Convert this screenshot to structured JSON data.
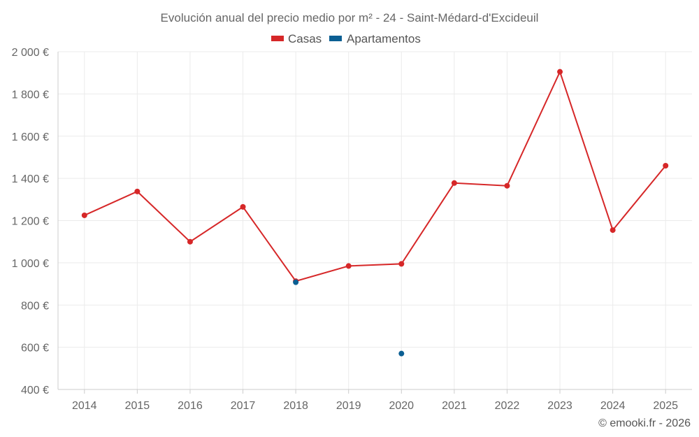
{
  "chart_data": {
    "type": "line",
    "title": "Evolución anual del precio medio por m² - 24 - Saint-Médard-d'Excideuil",
    "categories": [
      "2014",
      "2015",
      "2016",
      "2017",
      "2018",
      "2019",
      "2020",
      "2021",
      "2022",
      "2023",
      "2024",
      "2025"
    ],
    "ylim": [
      400,
      2000
    ],
    "yticks": [
      400,
      600,
      800,
      1000,
      1200,
      1400,
      1600,
      1800,
      2000
    ],
    "ytick_labels": [
      "400 €",
      "600 €",
      "800 €",
      "1 000 €",
      "1 200 €",
      "1 400 €",
      "1 600 €",
      "1 800 €",
      "2 000 €"
    ],
    "grid": true,
    "legend_position": "top-center",
    "series": [
      {
        "name": "Casas",
        "color": "#d62728",
        "values": [
          1225,
          1338,
          1100,
          1265,
          913,
          985,
          995,
          1378,
          1365,
          1905,
          1155,
          1460
        ]
      },
      {
        "name": "Apartamentos",
        "color": "#0b5f93",
        "values": [
          null,
          null,
          null,
          null,
          908,
          null,
          570,
          null,
          null,
          null,
          null,
          null
        ]
      }
    ]
  },
  "credit": "© emooki.fr - 2026"
}
